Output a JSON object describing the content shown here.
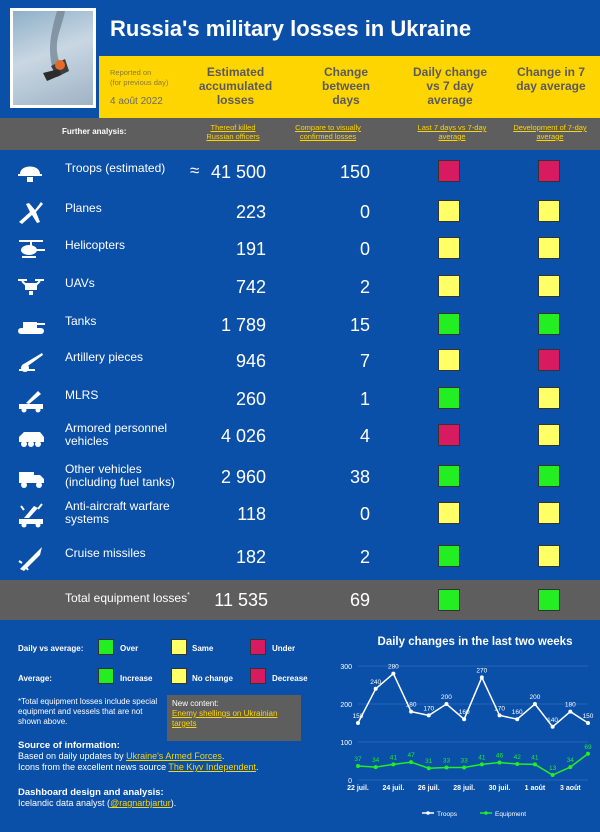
{
  "header": {
    "title": "Russia's military losses in Ukraine",
    "reported_on": "Reported on",
    "reported_note": "(for previous day)",
    "date": "4 août 2022",
    "col_total": "Estimated accumulated losses",
    "col_change": "Change between days",
    "col_daily": "Daily change vs 7 day average",
    "col_avg": "Change in 7 day average"
  },
  "further": {
    "label": "Further analysis:",
    "link1": "Thereof killed Russian officers",
    "link2": "Compare to visually confirmed losses",
    "link3": "Last 7 days vs 7-day average",
    "link4": "Development of 7-day average"
  },
  "rows": [
    {
      "label": "Troops (estimated)",
      "prefix": "≈",
      "total": "41 500",
      "change": "150",
      "daily": "#d81b60",
      "avg": "#d81b60",
      "icon": "helmet-icon"
    },
    {
      "label": "Planes",
      "prefix": "",
      "total": "223",
      "change": "0",
      "daily": "#ffff66",
      "avg": "#ffff66",
      "icon": "plane-icon"
    },
    {
      "label": "Helicopters",
      "prefix": "",
      "total": "191",
      "change": "0",
      "daily": "#ffff66",
      "avg": "#ffff66",
      "icon": "helicopter-icon"
    },
    {
      "label": "UAVs",
      "prefix": "",
      "total": "742",
      "change": "2",
      "daily": "#ffff66",
      "avg": "#ffff66",
      "icon": "drone-icon"
    },
    {
      "label": "Tanks",
      "prefix": "",
      "total": "1 789",
      "change": "15",
      "daily": "#22ee22",
      "avg": "#22ee22",
      "icon": "tank-icon"
    },
    {
      "label": "Artillery pieces",
      "prefix": "",
      "total": "946",
      "change": "7",
      "daily": "#ffff66",
      "avg": "#d81b60",
      "icon": "artillery-icon"
    },
    {
      "label": "MLRS",
      "prefix": "",
      "total": "260",
      "change": "1",
      "daily": "#22ee22",
      "avg": "#ffff66",
      "icon": "mlrs-icon"
    },
    {
      "label": "Armored personnel vehicles",
      "prefix": "",
      "total": "4 026",
      "change": "4",
      "daily": "#d81b60",
      "avg": "#ffff66",
      "icon": "apc-icon"
    },
    {
      "label": "Other vehicles (including fuel tanks)",
      "prefix": "",
      "total": "2 960",
      "change": "38",
      "daily": "#22ee22",
      "avg": "#22ee22",
      "icon": "truck-icon"
    },
    {
      "label": "Anti-aircraft warfare systems",
      "prefix": "",
      "total": "118",
      "change": "0",
      "daily": "#ffff66",
      "avg": "#ffff66",
      "icon": "antiaircraft-icon"
    },
    {
      "label": "Cruise missiles",
      "prefix": "",
      "total": "182",
      "change": "2",
      "daily": "#22ee22",
      "avg": "#ffff66",
      "icon": "missile-icon"
    }
  ],
  "total_row": {
    "label": "Total equipment losses",
    "star": "*",
    "total": "11 535",
    "change": "69",
    "daily": "#22ee22",
    "avg": "#22ee22"
  },
  "legend": {
    "daily_label": "Daily vs average:",
    "over": "Over",
    "same": "Same",
    "under": "Under",
    "avg_label": "Average:",
    "increase": "Increase",
    "nochange": "No change",
    "decrease": "Decrease",
    "green": "#22ee22",
    "yellow": "#ffff66",
    "red": "#d81b60"
  },
  "footnote": "*Total equipment losses include special equipment and vessels that are not shown above.",
  "new_content": {
    "label": "New content:",
    "link": "Enemy shellings on Ukrainian targets"
  },
  "source": {
    "title": "Source of information:",
    "line1_pre": "Based on daily updates by ",
    "line1_link": "Ukraine's Armed Forces",
    "line1_post": ".",
    "line2_pre": "Icons from the excellent news source ",
    "line2_link": "The Kiyv Independent",
    "line2_post": "."
  },
  "credits": {
    "title": "Dashboard design and analysis:",
    "line_pre": "Icelandic data analyst (",
    "line_link": "@ragnarbjartur",
    "line_post": ")."
  },
  "chart_data": {
    "type": "line",
    "title": "Daily changes in the last two weeks",
    "x": [
      "22 juil.",
      "23 juil.",
      "24 juil.",
      "25 juil.",
      "26 juil.",
      "27 juil.",
      "28 juil.",
      "29 juil.",
      "30 juil.",
      "31 juil.",
      "1 août",
      "2 août",
      "3 août",
      "4 août"
    ],
    "x_tick_labels": [
      "22 juil.",
      "24 juil.",
      "26 juil.",
      "28 juil.",
      "30 juil.",
      "1 août",
      "3 août"
    ],
    "ylim": [
      0,
      300
    ],
    "y_ticks": [
      0,
      100,
      200,
      300
    ],
    "legend_position": "bottom",
    "series": [
      {
        "name": "Troops",
        "color": "#ffffff",
        "values": [
          150,
          240,
          280,
          180,
          170,
          200,
          160,
          270,
          170,
          160,
          200,
          140,
          180,
          150
        ]
      },
      {
        "name": "Equipment",
        "color": "#22ee22",
        "values": [
          37,
          34,
          41,
          47,
          31,
          33,
          33,
          41,
          46,
          42,
          41,
          13,
          34,
          69
        ]
      }
    ]
  }
}
